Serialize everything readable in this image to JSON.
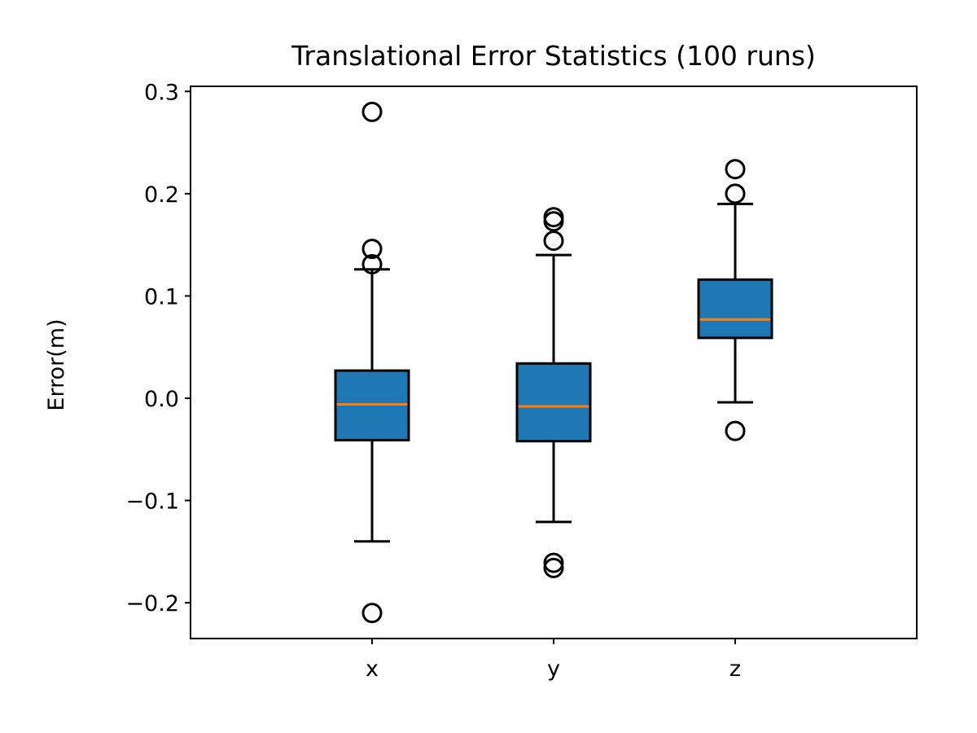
{
  "chart_data": {
    "type": "box",
    "title": "Translational Error Statistics (100 runs)",
    "xlabel": "",
    "ylabel": "Error(m)",
    "ylim": [
      -0.235,
      0.305
    ],
    "yticks": [
      {
        "value": -0.2,
        "label": "−0.2"
      },
      {
        "value": -0.1,
        "label": "−0.1"
      },
      {
        "value": 0.0,
        "label": "0.0"
      },
      {
        "value": 0.1,
        "label": "0.1"
      },
      {
        "value": 0.2,
        "label": "0.2"
      },
      {
        "value": 0.3,
        "label": "0.3"
      }
    ],
    "categories": [
      "x",
      "y",
      "z"
    ],
    "boxes": [
      {
        "category": "x",
        "whisker_low": -0.14,
        "q1": -0.041,
        "median": -0.006,
        "q3": 0.027,
        "whisker_high": 0.126,
        "outliers": [
          0.28,
          0.146,
          0.131,
          -0.21
        ]
      },
      {
        "category": "y",
        "whisker_low": -0.121,
        "q1": -0.042,
        "median": -0.008,
        "q3": 0.034,
        "whisker_high": 0.14,
        "outliers": [
          0.177,
          0.173,
          0.154,
          -0.161,
          -0.166
        ]
      },
      {
        "category": "z",
        "whisker_low": -0.004,
        "q1": 0.059,
        "median": 0.077,
        "q3": 0.116,
        "whisker_high": 0.19,
        "outliers": [
          0.224,
          0.2,
          -0.032
        ]
      }
    ],
    "grid": false,
    "legend": "none",
    "colors": {
      "box_fill": "#1f77b4",
      "median_line": "#ff7f0e",
      "edge": "#000000"
    }
  }
}
